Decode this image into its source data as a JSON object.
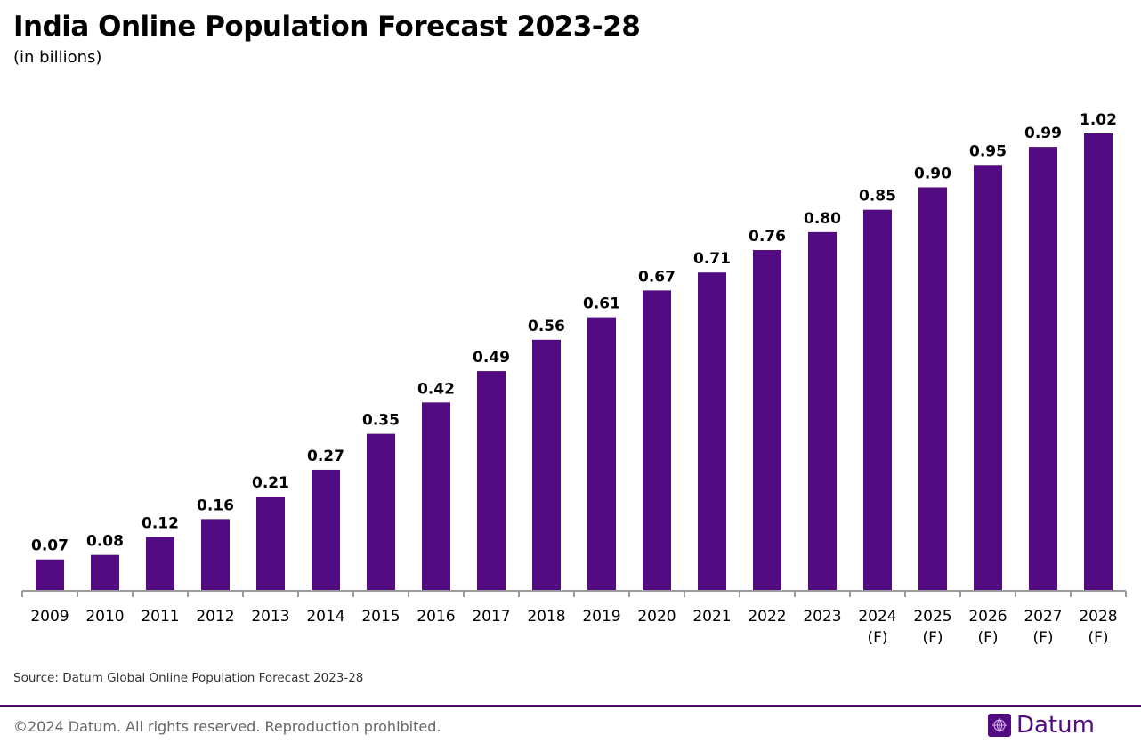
{
  "chart_data": {
    "type": "bar",
    "title": "India Online Population Forecast 2023-28",
    "subtitle": "(in billions)",
    "categories": [
      "2009",
      "2010",
      "2011",
      "2012",
      "2013",
      "2014",
      "2015",
      "2016",
      "2017",
      "2018",
      "2019",
      "2020",
      "2021",
      "2022",
      "2023",
      "2024\n(F)",
      "2025\n(F)",
      "2026\n(F)",
      "2027\n(F)",
      "2028\n(F)"
    ],
    "values": [
      0.07,
      0.08,
      0.12,
      0.16,
      0.21,
      0.27,
      0.35,
      0.42,
      0.49,
      0.56,
      0.61,
      0.67,
      0.71,
      0.76,
      0.8,
      0.85,
      0.9,
      0.95,
      0.99,
      1.02
    ],
    "value_labels": [
      "0.07",
      "0.08",
      "0.12",
      "0.16",
      "0.21",
      "0.27",
      "0.35",
      "0.42",
      "0.49",
      "0.56",
      "0.61",
      "0.67",
      "0.71",
      "0.76",
      "0.80",
      "0.85",
      "0.90",
      "0.95",
      "0.99",
      "1.02"
    ],
    "xlabel": "",
    "ylabel": "",
    "ylim": [
      0,
      1.02
    ],
    "grid": false,
    "bar_color": "#520b80"
  },
  "footer": {
    "source": "Source: Datum Global Online Population Forecast 2023-28",
    "copyright": "©2024 Datum. All rights reserved. Reproduction prohibited.",
    "logo_text": "Datum",
    "brand_color": "#520b80"
  }
}
